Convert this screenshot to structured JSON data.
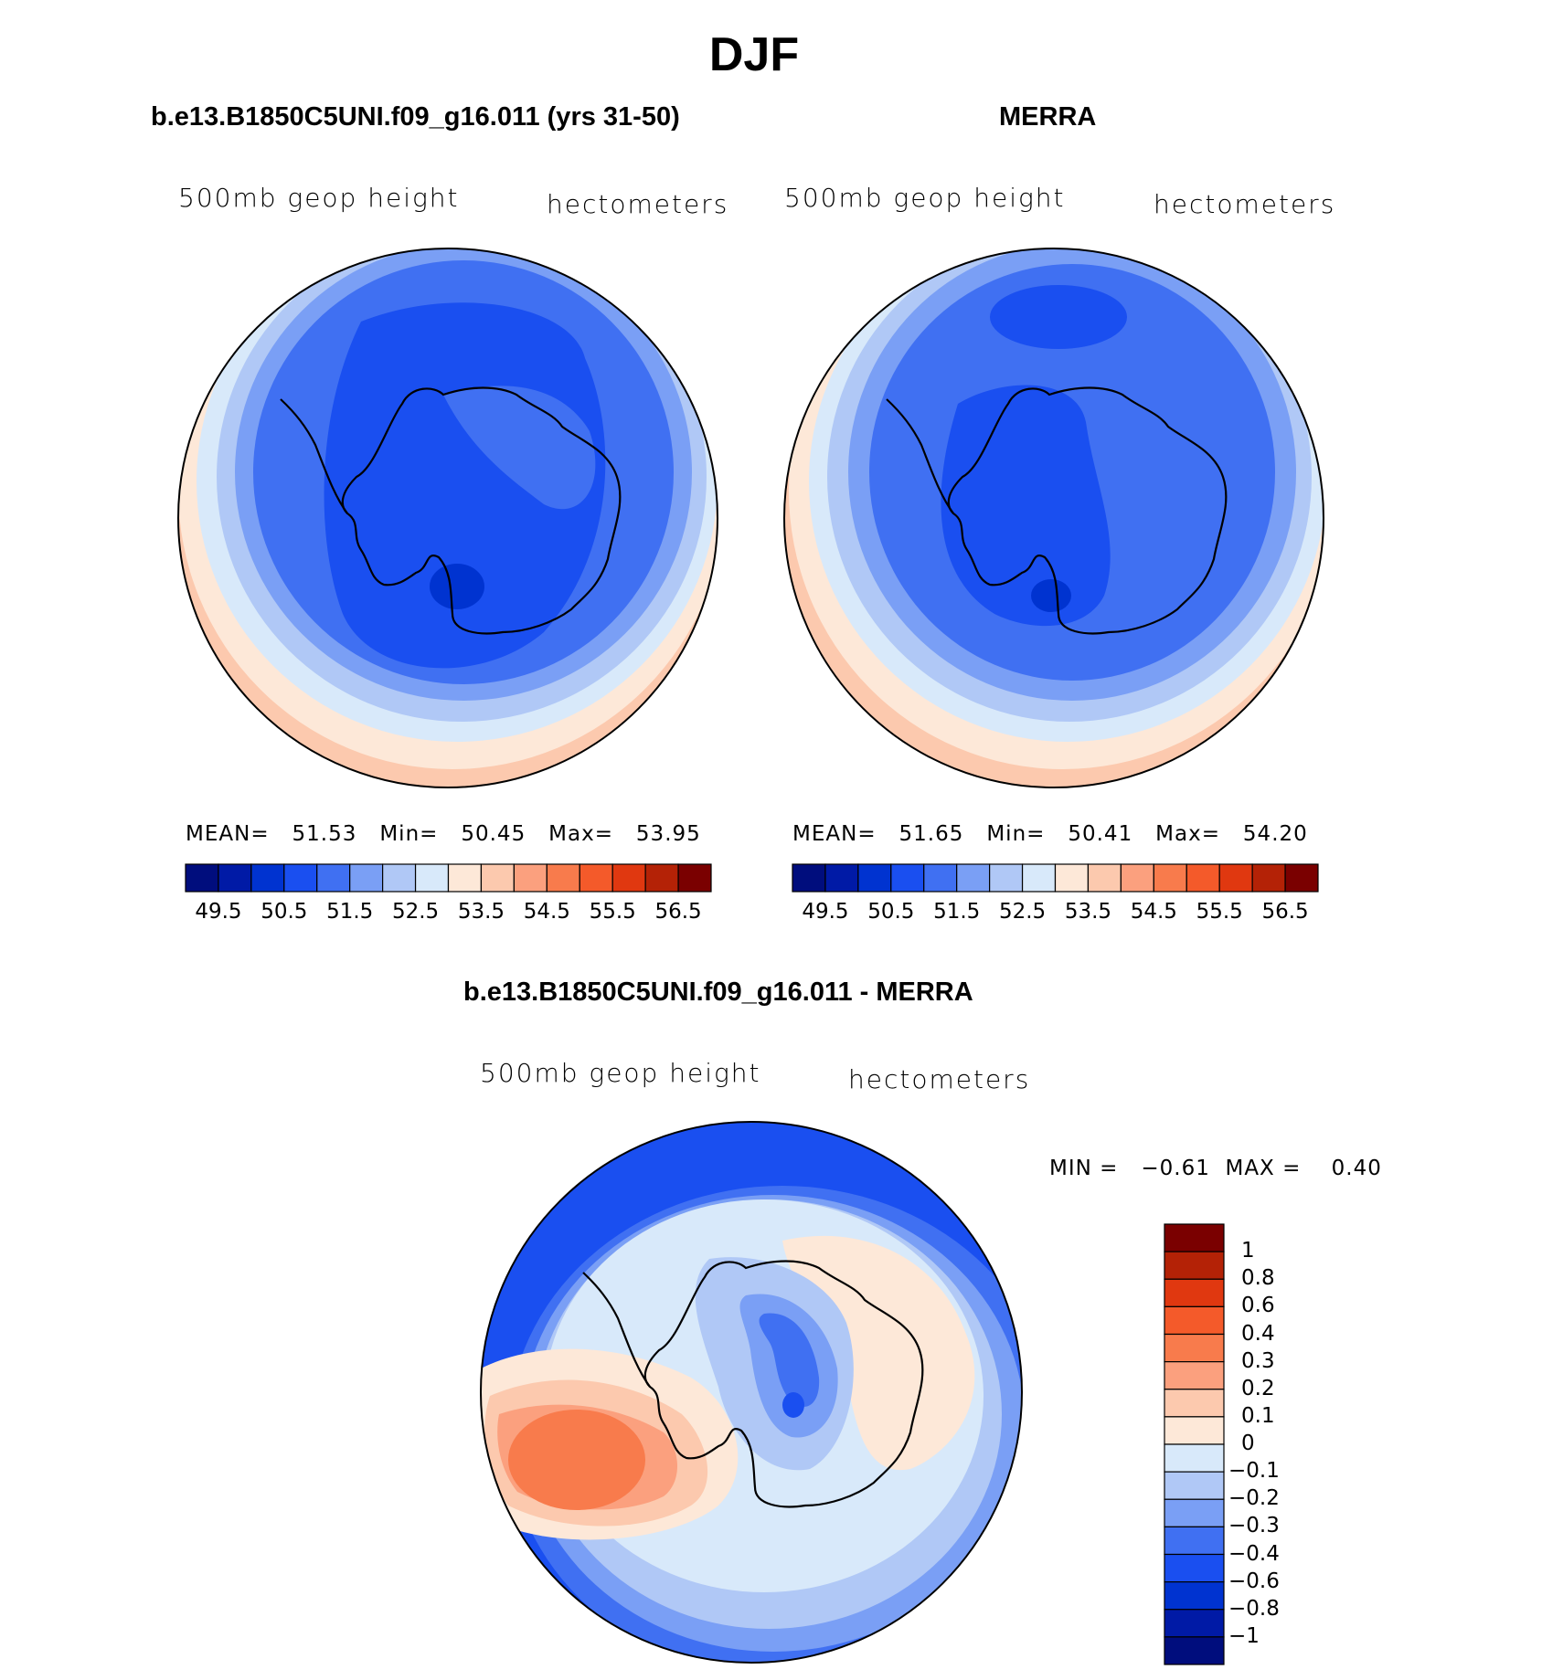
{
  "figure_title": "DJF",
  "panels": [
    {
      "subtitle": "b.e13.B1850C5UNI.f09_g16.011 (yrs 31-50)",
      "left_label": "500mb geop height",
      "right_label": "hectometers",
      "stats": {
        "mean_label": "MEAN=",
        "mean": "51.53",
        "min_label": "Min=",
        "min": "50.45",
        "max_label": "Max=",
        "max": "53.95"
      }
    },
    {
      "subtitle": "MERRA",
      "left_label": "500mb geop height",
      "right_label": "hectometers",
      "stats": {
        "mean_label": "MEAN=",
        "mean": "51.65",
        "min_label": "Min=",
        "min": "50.41",
        "max_label": "Max=",
        "max": "54.20"
      }
    }
  ],
  "diff_panel": {
    "subtitle": "b.e13.B1850C5UNI.f09_g16.011 - MERRA",
    "left_label": "500mb geop height",
    "right_label": "hectometers",
    "stats": {
      "min_label": "MIN =",
      "min": "−0.61",
      "max_label": "MAX =",
      "max": "0.40"
    }
  },
  "colorbar_abs": {
    "colors": [
      "#000d7d",
      "#001aa6",
      "#0033d0",
      "#1a4ff0",
      "#4070f2",
      "#7a9ff5",
      "#b0c8f6",
      "#d8e9fa",
      "#fde8d8",
      "#fcc9ae",
      "#fba07e",
      "#f87b4c",
      "#f45a2a",
      "#e03810",
      "#b42206",
      "#7a0000"
    ],
    "labels": [
      "49.5",
      "50.5",
      "51.5",
      "52.5",
      "53.5",
      "54.5",
      "55.5",
      "56.5"
    ]
  },
  "colorbar_diff": {
    "colors": [
      "#7a0000",
      "#b42206",
      "#e03810",
      "#f45a2a",
      "#f87b4c",
      "#fba07e",
      "#fcc9ae",
      "#fde8d8",
      "#d8e9fa",
      "#b0c8f6",
      "#7a9ff5",
      "#4070f2",
      "#1a4ff0",
      "#0033d0",
      "#001aa6",
      "#000d7d"
    ],
    "labels": [
      "1",
      "0.8",
      "0.6",
      "0.4",
      "0.3",
      "0.2",
      "0.1",
      "0",
      "−0.1",
      "−0.2",
      "−0.3",
      "−0.4",
      "−0.6",
      "−0.8",
      "−1"
    ]
  },
  "map_fields": {
    "model_mean": {
      "ocean_ring_colors": [
        "#fcc9ae",
        "#fde8d8",
        "#d8e9fa",
        "#b0c8f6",
        "#7a9ff5",
        "#4070f2",
        "#1a4ff0"
      ],
      "core_color": "#0033d0"
    },
    "merra_mean": {
      "ocean_ring_colors": [
        "#fcc9ae",
        "#fde8d8",
        "#d8e9fa",
        "#b0c8f6",
        "#7a9ff5",
        "#4070f2",
        "#1a4ff0"
      ],
      "core_color": "#0033d0"
    },
    "difference": {
      "background": "#1a4ff0",
      "positive_max_color": "#f87b4c",
      "negative_min_color": "#1a4ff0"
    }
  },
  "coastline_color": "#000000"
}
